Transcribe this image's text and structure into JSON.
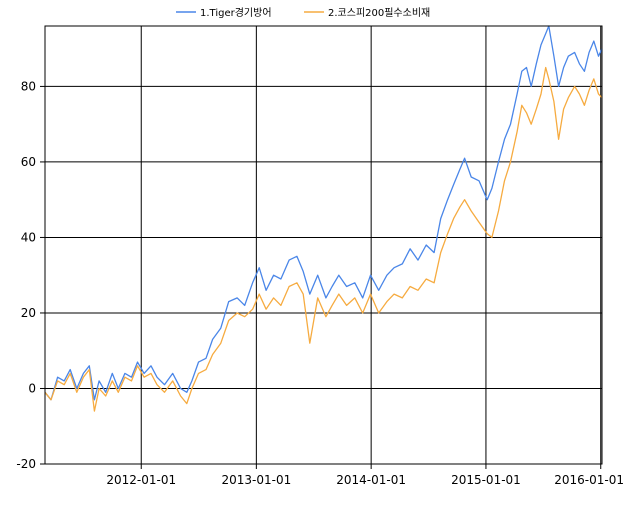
{
  "chart_data": {
    "type": "line",
    "title": "",
    "xlabel": "",
    "ylabel": "",
    "xlim": [
      "2011-03-01",
      "2016-01-05"
    ],
    "ylim": [
      -20,
      96
    ],
    "x_ticks": [
      "2012-01-01",
      "2013-01-01",
      "2014-01-01",
      "2015-01-01",
      "2016-01-01"
    ],
    "y_ticks": [
      -20,
      0,
      20,
      40,
      60,
      80
    ],
    "grid": true,
    "legend_position": "top-center",
    "series": [
      {
        "name": "1.Tiger경기방어",
        "color": "#4a86e8",
        "points": [
          [
            "2011-03-01",
            -1
          ],
          [
            "2011-03-20",
            -3
          ],
          [
            "2011-04-10",
            3
          ],
          [
            "2011-05-01",
            2
          ],
          [
            "2011-05-20",
            5
          ],
          [
            "2011-06-10",
            0
          ],
          [
            "2011-07-01",
            4
          ],
          [
            "2011-07-20",
            6
          ],
          [
            "2011-08-05",
            -3
          ],
          [
            "2011-08-20",
            2
          ],
          [
            "2011-09-10",
            -1
          ],
          [
            "2011-10-01",
            4
          ],
          [
            "2011-10-20",
            0
          ],
          [
            "2011-11-10",
            4
          ],
          [
            "2011-12-01",
            3
          ],
          [
            "2011-12-20",
            7
          ],
          [
            "2012-01-10",
            4
          ],
          [
            "2012-02-01",
            6
          ],
          [
            "2012-02-20",
            3
          ],
          [
            "2012-03-15",
            1
          ],
          [
            "2012-04-10",
            4
          ],
          [
            "2012-05-05",
            0
          ],
          [
            "2012-05-25",
            -1
          ],
          [
            "2012-06-10",
            2
          ],
          [
            "2012-07-01",
            7
          ],
          [
            "2012-07-25",
            8
          ],
          [
            "2012-08-15",
            13
          ],
          [
            "2012-09-10",
            16
          ],
          [
            "2012-10-05",
            23
          ],
          [
            "2012-11-01",
            24
          ],
          [
            "2012-11-25",
            22
          ],
          [
            "2012-12-20",
            28
          ],
          [
            "2013-01-10",
            32
          ],
          [
            "2013-02-01",
            26
          ],
          [
            "2013-02-25",
            30
          ],
          [
            "2013-03-20",
            29
          ],
          [
            "2013-04-15",
            34
          ],
          [
            "2013-05-10",
            35
          ],
          [
            "2013-05-30",
            31
          ],
          [
            "2013-06-20",
            25
          ],
          [
            "2013-07-15",
            30
          ],
          [
            "2013-08-10",
            24
          ],
          [
            "2013-08-30",
            27
          ],
          [
            "2013-09-20",
            30
          ],
          [
            "2013-10-15",
            27
          ],
          [
            "2013-11-10",
            28
          ],
          [
            "2013-12-05",
            24
          ],
          [
            "2013-12-30",
            30
          ],
          [
            "2014-01-25",
            26
          ],
          [
            "2014-02-20",
            30
          ],
          [
            "2014-03-15",
            32
          ],
          [
            "2014-04-10",
            33
          ],
          [
            "2014-05-05",
            37
          ],
          [
            "2014-05-30",
            34
          ],
          [
            "2014-06-25",
            38
          ],
          [
            "2014-07-20",
            36
          ],
          [
            "2014-08-10",
            45
          ],
          [
            "2014-09-01",
            50
          ],
          [
            "2014-09-20",
            54
          ],
          [
            "2014-10-10",
            58
          ],
          [
            "2014-10-25",
            61
          ],
          [
            "2014-11-15",
            56
          ],
          [
            "2014-12-10",
            55
          ],
          [
            "2015-01-05",
            50
          ],
          [
            "2015-01-20",
            53
          ],
          [
            "2015-02-10",
            60
          ],
          [
            "2015-03-01",
            66
          ],
          [
            "2015-03-20",
            70
          ],
          [
            "2015-04-10",
            78
          ],
          [
            "2015-04-25",
            84
          ],
          [
            "2015-05-10",
            85
          ],
          [
            "2015-05-25",
            80
          ],
          [
            "2015-06-10",
            86
          ],
          [
            "2015-06-25",
            91
          ],
          [
            "2015-07-10",
            94
          ],
          [
            "2015-07-20",
            96
          ],
          [
            "2015-08-05",
            88
          ],
          [
            "2015-08-20",
            80
          ],
          [
            "2015-09-05",
            85
          ],
          [
            "2015-09-20",
            88
          ],
          [
            "2015-10-10",
            89
          ],
          [
            "2015-10-25",
            86
          ],
          [
            "2015-11-10",
            84
          ],
          [
            "2015-11-25",
            89
          ],
          [
            "2015-12-10",
            92
          ],
          [
            "2015-12-25",
            88
          ],
          [
            "2016-01-05",
            90
          ]
        ]
      },
      {
        "name": "2.코스피200필수소비재",
        "color": "#f6ab40",
        "points": [
          [
            "2011-03-01",
            -1
          ],
          [
            "2011-03-20",
            -3
          ],
          [
            "2011-04-10",
            2
          ],
          [
            "2011-05-01",
            1
          ],
          [
            "2011-05-20",
            4
          ],
          [
            "2011-06-10",
            -1
          ],
          [
            "2011-07-01",
            3
          ],
          [
            "2011-07-20",
            5
          ],
          [
            "2011-08-05",
            -6
          ],
          [
            "2011-08-20",
            0
          ],
          [
            "2011-09-10",
            -2
          ],
          [
            "2011-10-01",
            2
          ],
          [
            "2011-10-20",
            -1
          ],
          [
            "2011-11-10",
            3
          ],
          [
            "2011-12-01",
            2
          ],
          [
            "2011-12-20",
            6
          ],
          [
            "2012-01-10",
            3
          ],
          [
            "2012-02-01",
            4
          ],
          [
            "2012-02-20",
            1
          ],
          [
            "2012-03-15",
            -1
          ],
          [
            "2012-04-10",
            2
          ],
          [
            "2012-05-05",
            -2
          ],
          [
            "2012-05-25",
            -4
          ],
          [
            "2012-06-10",
            0
          ],
          [
            "2012-07-01",
            4
          ],
          [
            "2012-07-25",
            5
          ],
          [
            "2012-08-15",
            9
          ],
          [
            "2012-09-10",
            12
          ],
          [
            "2012-10-05",
            18
          ],
          [
            "2012-11-01",
            20
          ],
          [
            "2012-11-25",
            19
          ],
          [
            "2012-12-20",
            21
          ],
          [
            "2013-01-10",
            25
          ],
          [
            "2013-02-01",
            21
          ],
          [
            "2013-02-25",
            24
          ],
          [
            "2013-03-20",
            22
          ],
          [
            "2013-04-15",
            27
          ],
          [
            "2013-05-10",
            28
          ],
          [
            "2013-05-30",
            25
          ],
          [
            "2013-06-20",
            12
          ],
          [
            "2013-07-15",
            24
          ],
          [
            "2013-08-10",
            19
          ],
          [
            "2013-08-30",
            22
          ],
          [
            "2013-09-20",
            25
          ],
          [
            "2013-10-15",
            22
          ],
          [
            "2013-11-10",
            24
          ],
          [
            "2013-12-05",
            20
          ],
          [
            "2013-12-30",
            25
          ],
          [
            "2014-01-25",
            20
          ],
          [
            "2014-02-20",
            23
          ],
          [
            "2014-03-15",
            25
          ],
          [
            "2014-04-10",
            24
          ],
          [
            "2014-05-05",
            27
          ],
          [
            "2014-05-30",
            26
          ],
          [
            "2014-06-25",
            29
          ],
          [
            "2014-07-20",
            28
          ],
          [
            "2014-08-10",
            36
          ],
          [
            "2014-09-01",
            41
          ],
          [
            "2014-09-20",
            45
          ],
          [
            "2014-10-10",
            48
          ],
          [
            "2014-10-25",
            50
          ],
          [
            "2014-11-15",
            47
          ],
          [
            "2014-12-10",
            44
          ],
          [
            "2015-01-05",
            41
          ],
          [
            "2015-01-20",
            40
          ],
          [
            "2015-02-10",
            47
          ],
          [
            "2015-03-01",
            55
          ],
          [
            "2015-03-20",
            60
          ],
          [
            "2015-04-10",
            68
          ],
          [
            "2015-04-25",
            75
          ],
          [
            "2015-05-10",
            73
          ],
          [
            "2015-05-25",
            70
          ],
          [
            "2015-06-10",
            74
          ],
          [
            "2015-06-25",
            78
          ],
          [
            "2015-07-10",
            85
          ],
          [
            "2015-07-20",
            82
          ],
          [
            "2015-08-05",
            76
          ],
          [
            "2015-08-20",
            66
          ],
          [
            "2015-09-05",
            74
          ],
          [
            "2015-09-20",
            77
          ],
          [
            "2015-10-10",
            80
          ],
          [
            "2015-10-25",
            78
          ],
          [
            "2015-11-10",
            75
          ],
          [
            "2015-11-25",
            79
          ],
          [
            "2015-12-10",
            82
          ],
          [
            "2015-12-25",
            78
          ],
          [
            "2016-01-05",
            77
          ]
        ]
      }
    ]
  }
}
